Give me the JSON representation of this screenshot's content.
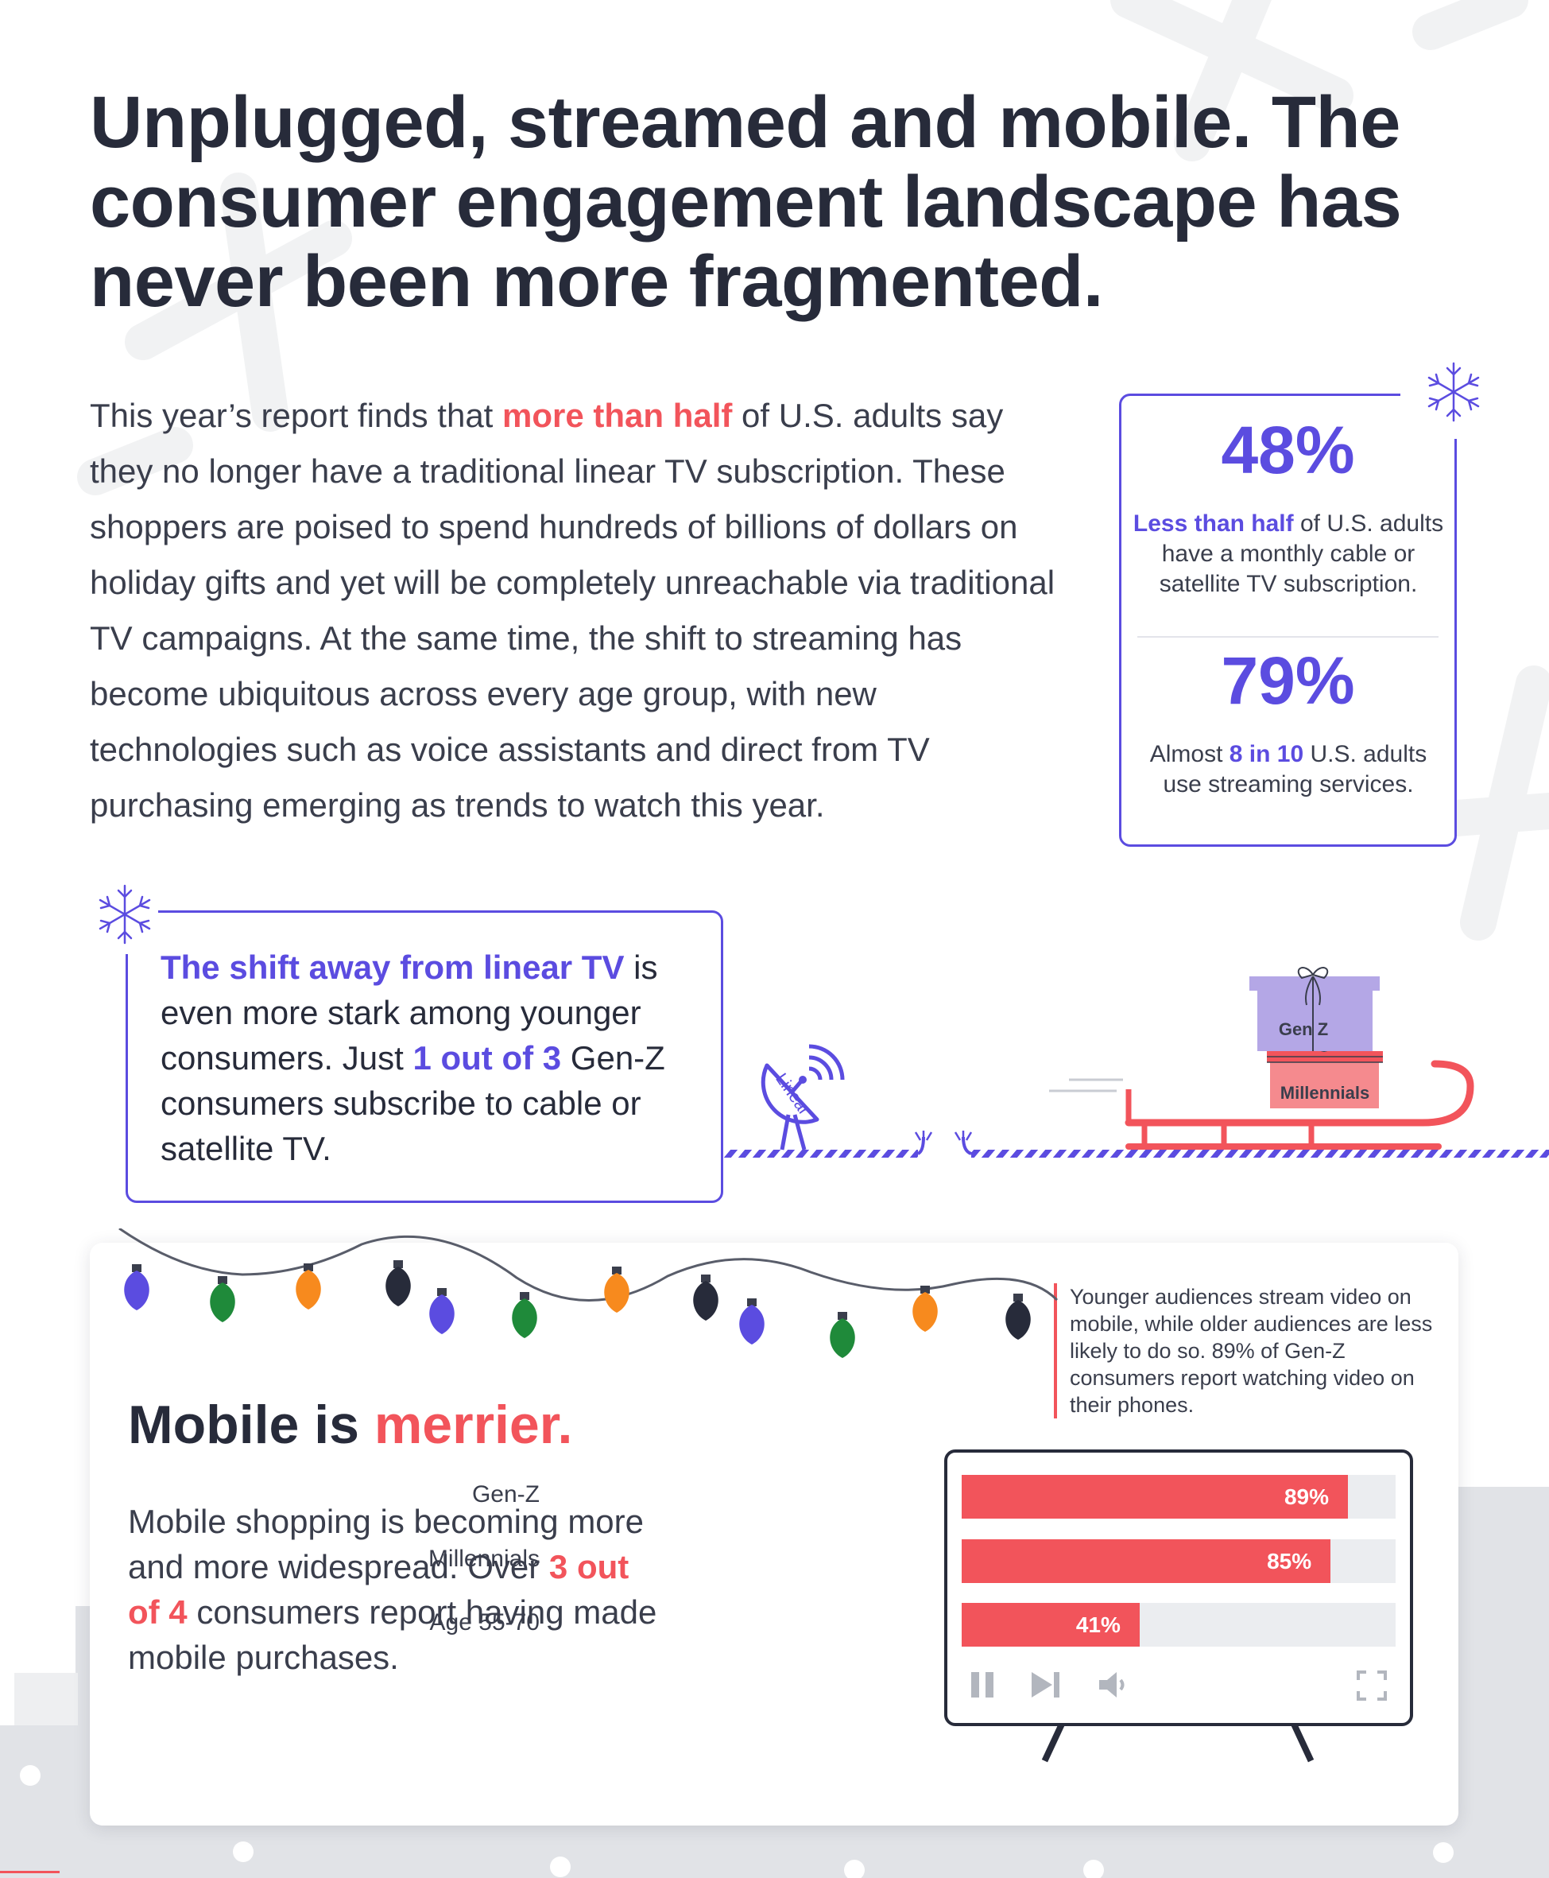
{
  "title": {
    "line1": "Unplugged, streamed and mobile. The",
    "line2": "consumer engagement landscape has",
    "line3": "never been more fragmented."
  },
  "intro": {
    "before": "This year’s report finds that ",
    "highlight": "more than half",
    "after": " of U.S. adults say they no longer have a traditional linear TV subscription. These shoppers are poised to spend hundreds of billions of dollars on holiday gifts and yet will be completely unreachable via traditional TV campaigns. At the same time, the shift to streaming has become ubiquitous across every age group, with new technologies such as voice assistants and direct from TV purchasing emerging as trends to watch this year."
  },
  "stats": {
    "stat1": {
      "value": "48%",
      "highlight": "Less than half",
      "rest": " of U.S. adults have a monthly cable or satellite TV subscription."
    },
    "stat2": {
      "value": "79%",
      "prefix": "Almost ",
      "highlight": "8 in 10",
      "rest": " U.S. adults use streaming services."
    }
  },
  "shift": {
    "highlight1": "The shift away from linear TV",
    "text1": " is even more stark among younger consumers. Just ",
    "highlight2": "1 out of 3",
    "text2": " Gen-Z consumers subscribe to cable or satellite TV."
  },
  "illustration": {
    "dish_label": "Linear",
    "gift_top_label": "Gen Z",
    "gift_bottom_label": "Millennials"
  },
  "mobile": {
    "heading_plain": "Mobile is ",
    "heading_highlight": "merrier.",
    "body_before": "Mobile shopping is becoming more and more widespread. Over ",
    "body_highlight": "3 out of 4",
    "body_after": " consumers report having made mobile purchases.",
    "note": "Younger audiences stream video on mobile, while older audiences are less likely to do so. 89% of Gen-Z consumers report watching video on their phones."
  },
  "chart_data": {
    "type": "bar",
    "orientation": "horizontal",
    "categories": [
      "Gen-Z",
      "Millennials",
      "Age 55-70"
    ],
    "values": [
      89,
      85,
      41
    ],
    "value_labels": [
      "89%",
      "85%",
      "41%"
    ],
    "xlim": [
      0,
      100
    ],
    "unit": "%"
  },
  "colors": {
    "accent_purple": "#5b4ce0",
    "accent_red": "#f2545b",
    "text_dark": "#272b3a"
  },
  "icons": [
    "snowflake-icon",
    "satellite-dish-icon",
    "sleigh-icon",
    "gift-icon",
    "string-lights-icon",
    "pause-icon",
    "skip-icon",
    "volume-icon",
    "fullscreen-icon"
  ]
}
